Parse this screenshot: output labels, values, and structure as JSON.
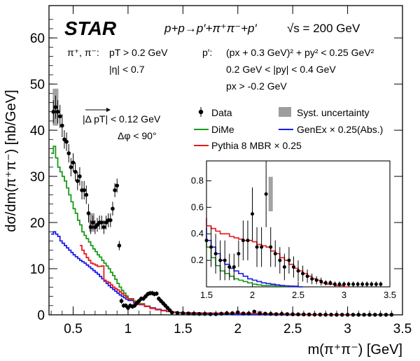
{
  "chart_data": [
    {
      "type": "scatter",
      "experiment": "STAR",
      "process": "p+p→p′+π⁺π⁻+p′",
      "energy": "√s = 200 GeV",
      "xlabel": "m(π⁺π⁻) [GeV]",
      "ylabel": "dσ/dm(π⁺π⁻) [nb/GeV]",
      "xlim": [
        0.28,
        3.5
      ],
      "ylim": [
        0,
        67
      ],
      "x_ticks": [
        "0.5",
        "1",
        "1.5",
        "2",
        "2.5",
        "3",
        "3.5"
      ],
      "y_ticks": [
        "0",
        "10",
        "20",
        "30",
        "40",
        "50",
        "60"
      ],
      "grid": false,
      "legend_position": "middle-right",
      "cuts": {
        "pion_label": "π⁺, π⁻:",
        "pion_pt": "pT > 0.2 GeV",
        "pion_eta": "|η| < 0.7",
        "proton_label": "p′:",
        "proton_line1": "(px + 0.3 GeV)² + py² < 0.25 GeV²",
        "proton_line2": "0.2 GeV < |py| < 0.4 GeV",
        "proton_line3": "px > -0.2 GeV",
        "delta_pt": "|Δ pT| < 0.12 GeV",
        "delta_phi": "Δφ < 90°"
      },
      "series": [
        {
          "name": "Data",
          "color": "#000000",
          "style": "points",
          "x": [
            0.32,
            0.34,
            0.36,
            0.38,
            0.4,
            0.42,
            0.44,
            0.46,
            0.48,
            0.5,
            0.52,
            0.54,
            0.56,
            0.58,
            0.6,
            0.62,
            0.64,
            0.66,
            0.68,
            0.7,
            0.72,
            0.74,
            0.76,
            0.78,
            0.8,
            0.82,
            0.84,
            0.86,
            0.88,
            0.9,
            0.92,
            0.94,
            0.96,
            0.98,
            1.0,
            1.02,
            1.04,
            1.06,
            1.08,
            1.1,
            1.12,
            1.14,
            1.16,
            1.18,
            1.2,
            1.22,
            1.24,
            1.26,
            1.28,
            1.3,
            1.32,
            1.34,
            1.36,
            1.38,
            1.4,
            1.45,
            1.5,
            1.55,
            1.6,
            1.65,
            1.7,
            1.75,
            1.8,
            1.85,
            1.9,
            1.95,
            2.0,
            2.05,
            2.1,
            2.15,
            2.2,
            2.25,
            2.3,
            2.35,
            2.4,
            2.45,
            2.5,
            2.55,
            2.6,
            2.65,
            2.7,
            2.75,
            2.8,
            2.85,
            2.9,
            2.95,
            3.0,
            3.05,
            3.1,
            3.15,
            3.2,
            3.25,
            3.3,
            3.35,
            3.4
          ],
          "values": [
            44,
            45,
            44,
            43,
            41,
            38,
            37.5,
            35,
            32,
            33,
            31,
            29,
            30,
            27,
            27,
            26,
            22,
            19,
            20,
            19,
            19.5,
            20,
            20,
            19,
            20,
            20.5,
            20.5,
            23,
            27,
            28,
            15,
            3,
            2,
            2,
            1.5,
            2,
            1.8,
            2,
            2.5,
            3,
            3.5,
            3.5,
            4,
            4.5,
            4.7,
            4.7,
            4.5,
            4.6,
            3.5,
            3,
            2.5,
            2,
            1.5,
            1,
            0.5,
            0.4,
            0.35,
            0.3,
            0.25,
            0.2,
            0.2,
            0.15,
            0.15,
            0.25,
            0.35,
            0.35,
            0.55,
            0.3,
            0.3,
            0.7,
            0.3,
            0.25,
            0.2,
            0.15,
            0.2,
            0.15,
            0.12,
            0.1,
            0.08,
            0.06,
            0.05,
            0.04,
            0.03,
            0.03,
            0.02,
            0.02,
            0.02,
            0.02,
            0.02,
            0.02,
            0.02,
            0.02,
            0.02,
            0.02,
            0.02
          ],
          "errors": [
            2.5,
            2.5,
            2.5,
            2.5,
            2.5,
            2.0,
            2.0,
            2.0,
            2.0,
            2.0,
            2.0,
            2.0,
            2.0,
            2.0,
            2.0,
            2.0,
            2.0,
            1.5,
            1.5,
            1.5,
            1.5,
            1.5,
            1.5,
            1.5,
            1.5,
            1.5,
            1.5,
            1.5,
            1.5,
            1.5,
            1.0,
            0.6,
            0.5,
            0.5,
            0.5,
            0.5,
            0.5,
            0.5,
            0.5,
            0.5,
            0.5,
            0.5,
            0.5,
            0.5,
            0.5,
            0.5,
            0.5,
            0.5,
            0.5,
            0.5,
            0.5,
            0.5,
            0.4,
            0.3,
            0.3,
            0.2,
            0.2,
            0.15,
            0.15,
            0.15,
            0.15,
            0.1,
            0.1,
            0.1,
            0.15,
            0.15,
            0.2,
            0.15,
            0.15,
            0.25,
            0.15,
            0.1,
            0.1,
            0.1,
            0.1,
            0.08,
            0.08,
            0.06,
            0.05,
            0.04,
            0.03,
            0.03,
            0.02,
            0.02,
            0.02,
            0.02,
            0.02,
            0.02,
            0.02,
            0.02,
            0.02,
            0.02,
            0.02,
            0.02,
            0.02
          ]
        },
        {
          "name": "Syst. uncertainty",
          "color": "#8c8c8c",
          "style": "bands",
          "bands": [
            [
              0.34,
              41,
              49
            ],
            [
              0.67,
              18,
              22
            ],
            [
              2.2,
              0.57,
              0.83
            ]
          ]
        },
        {
          "name": "DiMe",
          "color": "#1a9a1a",
          "style": "step",
          "x": [
            0.3,
            0.32,
            0.34,
            0.36,
            0.38,
            0.4,
            0.42,
            0.44,
            0.46,
            0.48,
            0.5,
            0.52,
            0.54,
            0.56,
            0.58,
            0.6,
            0.62,
            0.64,
            0.66,
            0.68,
            0.7,
            0.72,
            0.74,
            0.76,
            0.78,
            0.8,
            0.82,
            0.84,
            0.86,
            0.88,
            0.9,
            0.92,
            0.94,
            0.96,
            0.98,
            1.0,
            1.05,
            1.1,
            1.15,
            1.2,
            1.25,
            1.3,
            1.35,
            1.4,
            1.45,
            1.5,
            1.55,
            1.6,
            1.65,
            1.7,
            1.75,
            1.8,
            1.85,
            1.9,
            1.95,
            2.0,
            2.05,
            2.1,
            2.15,
            2.2,
            2.25,
            2.3,
            2.35,
            2.4,
            2.45,
            2.5
          ],
          "values": [
            35,
            36.5,
            34,
            32,
            31,
            30,
            29,
            27.5,
            26,
            24.5,
            23,
            22,
            20.5,
            19.5,
            18,
            17.2,
            16.5,
            15.8,
            15,
            14.3,
            13.7,
            13,
            12.5,
            11.8,
            11.2,
            10.6,
            10,
            9.2,
            8.5,
            7.7,
            6.8,
            6,
            5.3,
            4.7,
            4.1,
            3.5,
            3.0,
            2.4,
            1.9,
            1.5,
            1.2,
            0.9,
            0.7,
            0.5,
            0.38,
            0.3,
            0.22,
            0.16,
            0.12,
            0.1,
            0.08,
            0.06,
            0.05,
            0.04,
            0.03,
            0.02,
            0.015,
            0.01,
            0.01,
            0.01,
            0.005,
            0.005,
            0.005,
            0.005,
            0.005,
            0.0
          ]
        },
        {
          "name": "GenEx × 0.25(Abs.)",
          "color": "#1a1aee",
          "style": "step",
          "x": [
            0.3,
            0.32,
            0.34,
            0.36,
            0.38,
            0.4,
            0.42,
            0.44,
            0.46,
            0.48,
            0.5,
            0.52,
            0.54,
            0.56,
            0.58,
            0.6,
            0.62,
            0.64,
            0.66,
            0.68,
            0.7,
            0.72,
            0.74,
            0.76,
            0.78,
            0.8,
            0.82,
            0.84,
            0.86,
            0.88,
            0.9,
            0.92,
            0.94,
            0.96,
            0.98,
            1.0,
            1.05,
            1.1,
            1.15,
            1.2,
            1.25,
            1.3,
            1.35,
            1.4,
            1.45,
            1.5,
            1.55,
            1.6,
            1.65,
            1.7,
            1.75,
            1.8,
            1.85,
            1.9,
            1.95,
            2.0,
            2.05,
            2.1,
            2.15,
            2.2,
            2.25,
            2.3,
            2.35,
            2.4,
            2.45,
            2.5
          ],
          "values": [
            17.5,
            18,
            17.5,
            17,
            16,
            15.5,
            15,
            14.5,
            14,
            13.5,
            13,
            12.6,
            12.2,
            11.8,
            11.5,
            11.2,
            10.8,
            10.4,
            10,
            9.6,
            9.2,
            8.8,
            8.3,
            7.8,
            7.3,
            6.8,
            6.3,
            5.9,
            5.5,
            5.1,
            4.7,
            4.3,
            4,
            3.7,
            3.4,
            3.1,
            2.6,
            2.2,
            1.8,
            1.5,
            1.2,
            0.95,
            0.75,
            0.6,
            0.45,
            0.35,
            0.3,
            0.25,
            0.2,
            0.17,
            0.14,
            0.12,
            0.1,
            0.08,
            0.06,
            0.05,
            0.04,
            0.03,
            0.025,
            0.02,
            0.015,
            0.01,
            0.008,
            0.006,
            0.004,
            0.0
          ]
        },
        {
          "name": "Pythia 8 MBR × 0.25",
          "color": "#e81a1a",
          "style": "step",
          "x": [
            0.56,
            0.58,
            0.6,
            0.62,
            0.64,
            0.66,
            0.68,
            0.7,
            0.72,
            0.74,
            0.76,
            0.78,
            0.8,
            0.82,
            0.84,
            0.86,
            0.88,
            0.9,
            0.92,
            0.94,
            0.96,
            0.98,
            1.0,
            1.05,
            1.1,
            1.15,
            1.2,
            1.25,
            1.3,
            1.35,
            1.4,
            1.45,
            1.5,
            1.55,
            1.6,
            1.65,
            1.7,
            1.75,
            1.8,
            1.85,
            1.9,
            1.95,
            2.0,
            2.05,
            2.1,
            2.15,
            2.2,
            2.25,
            2.3,
            2.35,
            2.4,
            2.45,
            2.5,
            2.55,
            2.6,
            2.65,
            2.7,
            2.75,
            2.8,
            2.85,
            2.9,
            2.95,
            3.0
          ],
          "values": [
            15,
            14,
            13.2,
            12.4,
            11.8,
            11.2,
            11,
            10.8,
            10.5,
            10.5,
            10.6,
            7.5,
            7.2,
            7,
            6.5,
            6.0,
            5.7,
            5.4,
            5.0,
            4.6,
            4.2,
            3.8,
            3.4,
            2.8,
            2.3,
            1.8,
            1.4,
            1.1,
            0.9,
            0.75,
            0.62,
            0.52,
            0.46,
            0.44,
            0.42,
            0.4,
            0.4,
            0.38,
            0.37,
            0.36,
            0.35,
            0.35,
            0.34,
            0.32,
            0.31,
            0.3,
            0.27,
            0.25,
            0.22,
            0.2,
            0.17,
            0.14,
            0.12,
            0.1,
            0.08,
            0.06,
            0.05,
            0.03,
            0.02,
            0.02,
            0.01,
            0.01,
            0.0
          ]
        }
      ]
    },
    {
      "type": "scatter",
      "role": "inset",
      "xlim": [
        1.5,
        3.5
      ],
      "ylim": [
        0,
        0.95
      ],
      "x_ticks": [
        "1.5",
        "2",
        "2.5",
        "3",
        "3.5"
      ],
      "y_ticks": [
        "0.2",
        "0.4",
        "0.6",
        "0.8"
      ]
    }
  ]
}
